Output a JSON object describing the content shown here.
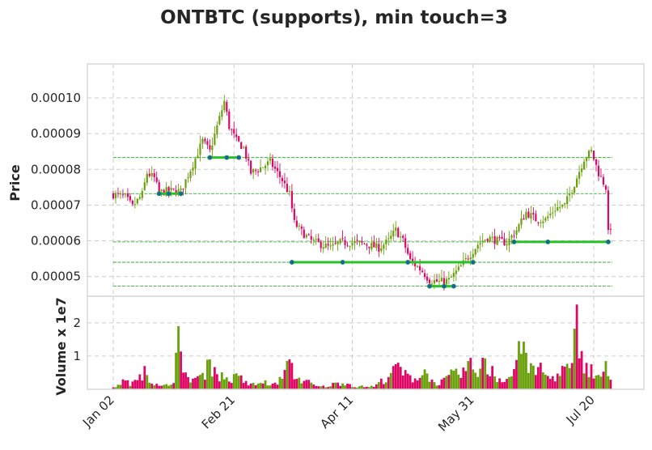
{
  "chart_data": {
    "type": "candlestick",
    "title": "ONTBTC (supports), min touch=3",
    "price_panel": {
      "ylabel": "Price",
      "yticks": [
        5e-05,
        6e-05,
        7e-05,
        8e-05,
        9e-05,
        0.0001
      ],
      "ytick_labels": [
        "0.00005",
        "0.00006",
        "0.00007",
        "0.00008",
        "0.00009",
        "0.00010"
      ],
      "ylim": [
        4.45e-05,
        0.0001095
      ],
      "grid": true
    },
    "volume_panel": {
      "ylabel": "Volume x 1e7",
      "yticks": [
        1,
        2
      ],
      "ytick_labels": [
        "1",
        "2"
      ],
      "ylim": [
        0,
        2.8
      ],
      "grid": true
    },
    "x": {
      "day_range": [
        0,
        206
      ],
      "ticks": [
        {
          "day": 0,
          "label": "Jan 02"
        },
        {
          "day": 50,
          "label": "Feb 21"
        },
        {
          "day": 99,
          "label": "Apr 11"
        },
        {
          "day": 149,
          "label": "May 31"
        },
        {
          "day": 199,
          "label": "Jul 20"
        }
      ]
    },
    "support_levels": [
      8.33e-05,
      7.32e-05,
      5.97e-05,
      5.4e-05,
      4.73e-05
    ],
    "support_segments": [
      {
        "x0": 19,
        "x1": 28,
        "y": 7.32e-05
      },
      {
        "x0": 40,
        "x1": 52,
        "y": 8.33e-05
      },
      {
        "x0": 74,
        "x1": 149,
        "y": 5.4e-05
      },
      {
        "x0": 131,
        "x1": 141,
        "y": 4.73e-05
      },
      {
        "x0": 166,
        "x1": 205,
        "y": 5.97e-05
      }
    ],
    "touch_points": [
      {
        "x": 19,
        "y": 7.32e-05
      },
      {
        "x": 23,
        "y": 7.32e-05
      },
      {
        "x": 28,
        "y": 7.32e-05
      },
      {
        "x": 40,
        "y": 8.33e-05
      },
      {
        "x": 47,
        "y": 8.33e-05
      },
      {
        "x": 52,
        "y": 8.33e-05
      },
      {
        "x": 74,
        "y": 5.4e-05
      },
      {
        "x": 95,
        "y": 5.4e-05
      },
      {
        "x": 122,
        "y": 5.4e-05
      },
      {
        "x": 149,
        "y": 5.4e-05
      },
      {
        "x": 131,
        "y": 4.73e-05
      },
      {
        "x": 137,
        "y": 4.73e-05
      },
      {
        "x": 141,
        "y": 4.73e-05
      },
      {
        "x": 166,
        "y": 5.97e-05
      },
      {
        "x": 180,
        "y": 5.97e-05
      },
      {
        "x": 205,
        "y": 5.97e-05
      }
    ],
    "close_anchors": [
      [
        0,
        7.3e-05
      ],
      [
        5,
        7.22e-05
      ],
      [
        8,
        6.95e-05
      ],
      [
        12,
        7.3e-05
      ],
      [
        14,
        7.9e-05
      ],
      [
        17,
        7.75e-05
      ],
      [
        19,
        7.35e-05
      ],
      [
        23,
        7.4e-05
      ],
      [
        28,
        7.38e-05
      ],
      [
        31,
        7.85e-05
      ],
      [
        34,
        8.3e-05
      ],
      [
        37,
        8.8e-05
      ],
      [
        40,
        8.5e-05
      ],
      [
        43,
        9.2e-05
      ],
      [
        46,
        9.9e-05
      ],
      [
        48,
        9.2e-05
      ],
      [
        51,
        8.8e-05
      ],
      [
        54,
        8.6e-05
      ],
      [
        57,
        7.9e-05
      ],
      [
        60,
        8e-05
      ],
      [
        65,
        8.2e-05
      ],
      [
        70,
        7.7e-05
      ],
      [
        73,
        7.3e-05
      ],
      [
        75,
        6.5e-05
      ],
      [
        78,
        6.25e-05
      ],
      [
        82,
        6e-05
      ],
      [
        86,
        5.9e-05
      ],
      [
        90,
        5.8e-05
      ],
      [
        94,
        5.95e-05
      ],
      [
        100,
        5.95e-05
      ],
      [
        105,
        5.9e-05
      ],
      [
        110,
        5.8e-05
      ],
      [
        114,
        6e-05
      ],
      [
        117,
        6.3e-05
      ],
      [
        120,
        6e-05
      ],
      [
        123,
        5.45e-05
      ],
      [
        128,
        5.15e-05
      ],
      [
        131,
        4.9e-05
      ],
      [
        135,
        4.85e-05
      ],
      [
        139,
        4.9e-05
      ],
      [
        143,
        5.2e-05
      ],
      [
        147,
        5.55e-05
      ],
      [
        151,
        5.9e-05
      ],
      [
        155,
        6.1e-05
      ],
      [
        159,
        6e-05
      ],
      [
        163,
        5.95e-05
      ],
      [
        167,
        6.3e-05
      ],
      [
        171,
        6.8e-05
      ],
      [
        175,
        6.6e-05
      ],
      [
        179,
        6.6e-05
      ],
      [
        183,
        6.9e-05
      ],
      [
        187,
        7e-05
      ],
      [
        191,
        7.6e-05
      ],
      [
        195,
        8.3e-05
      ],
      [
        198,
        8.5e-05
      ],
      [
        201,
        7.9e-05
      ],
      [
        204,
        7.5e-05
      ],
      [
        205,
        6.2e-05
      ],
      [
        206,
        6.4e-05
      ]
    ],
    "volume_anchors": [
      [
        0,
        0.05
      ],
      [
        4,
        0.3
      ],
      [
        8,
        0.2
      ],
      [
        11,
        0.45
      ],
      [
        13,
        0.7
      ],
      [
        15,
        0.35
      ],
      [
        19,
        0.1
      ],
      [
        23,
        0.15
      ],
      [
        25,
        0.4
      ],
      [
        27,
        1.9
      ],
      [
        29,
        0.45
      ],
      [
        33,
        0.4
      ],
      [
        37,
        0.45
      ],
      [
        40,
        0.9
      ],
      [
        44,
        0.5
      ],
      [
        48,
        0.35
      ],
      [
        52,
        0.45
      ],
      [
        56,
        0.15
      ],
      [
        60,
        0.2
      ],
      [
        63,
        0.25
      ],
      [
        66,
        0.15
      ],
      [
        70,
        0.4
      ],
      [
        73,
        0.9
      ],
      [
        76,
        0.4
      ],
      [
        80,
        0.3
      ],
      [
        84,
        0.1
      ],
      [
        88,
        0.1
      ],
      [
        92,
        0.2
      ],
      [
        96,
        0.25
      ],
      [
        100,
        0.1
      ],
      [
        104,
        0.1
      ],
      [
        108,
        0.1
      ],
      [
        112,
        0.35
      ],
      [
        115,
        0.6
      ],
      [
        118,
        0.8
      ],
      [
        121,
        0.5
      ],
      [
        124,
        0.4
      ],
      [
        127,
        0.5
      ],
      [
        130,
        0.6
      ],
      [
        133,
        0.2
      ],
      [
        137,
        0.3
      ],
      [
        140,
        0.5
      ],
      [
        144,
        0.55
      ],
      [
        147,
        0.85
      ],
      [
        150,
        0.7
      ],
      [
        153,
        0.95
      ],
      [
        156,
        0.6
      ],
      [
        159,
        0.4
      ],
      [
        162,
        0.4
      ],
      [
        165,
        0.45
      ],
      [
        168,
        1.45
      ],
      [
        171,
        1.1
      ],
      [
        174,
        0.6
      ],
      [
        177,
        0.8
      ],
      [
        180,
        0.4
      ],
      [
        184,
        0.5
      ],
      [
        187,
        0.75
      ],
      [
        190,
        0.7
      ],
      [
        192,
        2.55
      ],
      [
        194,
        1.15
      ],
      [
        197,
        0.8
      ],
      [
        200,
        0.45
      ],
      [
        203,
        0.6
      ],
      [
        205,
        0.35
      ]
    ],
    "volume_peaks": [
      [
        4,
        0.3
      ],
      [
        11,
        0.45
      ],
      [
        13,
        0.7
      ],
      [
        27,
        1.9
      ],
      [
        40,
        0.9
      ],
      [
        55,
        0.25
      ],
      [
        73,
        0.9
      ],
      [
        116,
        0.7
      ],
      [
        118,
        0.8
      ],
      [
        129,
        0.6
      ],
      [
        147,
        0.85
      ],
      [
        153,
        0.95
      ],
      [
        157,
        0.7
      ],
      [
        168,
        1.45
      ],
      [
        171,
        1.1
      ],
      [
        177,
        0.8
      ],
      [
        192,
        2.55
      ],
      [
        194,
        1.15
      ],
      [
        204,
        0.85
      ]
    ],
    "colors": {
      "up": "#6aa10c",
      "down": "#dd0766",
      "support_line": "#28c228",
      "support_dashed": "#1a9f1a",
      "touch_point": "#1f5fa8",
      "grid": "#cccccc",
      "panel_border": "#d9d9d9"
    }
  }
}
